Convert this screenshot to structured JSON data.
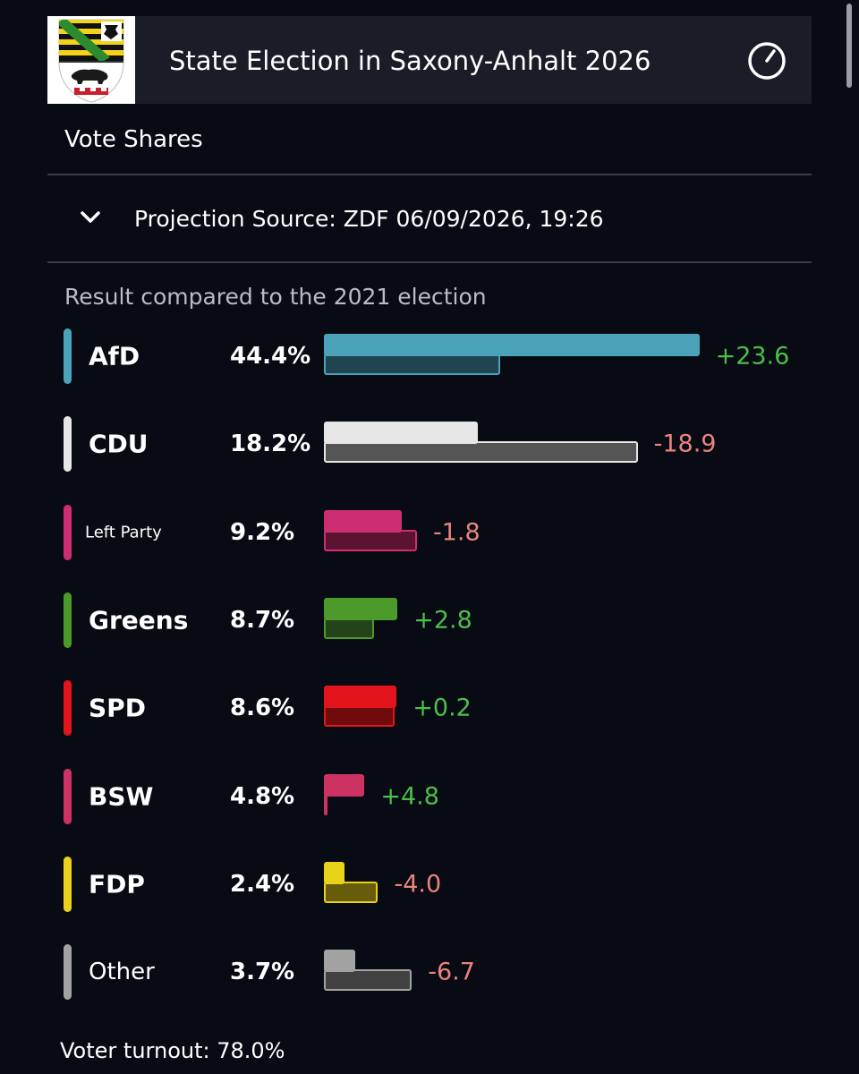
{
  "header": {
    "title": "State Election in Saxony-Anhalt 2026",
    "logo": "saxony-anhalt-coat-of-arms",
    "power_icon": "power-icon"
  },
  "section_title": "Vote Shares",
  "projection": {
    "label": "Projection Source: ZDF 06/09/2026, 19:26",
    "chevron_icon": "chevron-down-icon"
  },
  "chart_data": {
    "type": "bar",
    "title": "Result compared to the 2021 election",
    "categories": [
      "AfD",
      "CDU",
      "Left Party",
      "Greens",
      "SPD",
      "BSW",
      "FDP",
      "Other"
    ],
    "series": [
      {
        "values": [
          44.4,
          18.2,
          9.2,
          8.7,
          8.6,
          4.8,
          2.4,
          3.7
        ]
      },
      {
        "values": [
          20.8,
          37.1,
          11.0,
          5.9,
          8.4,
          0.0,
          6.4,
          10.4
        ]
      }
    ],
    "value_labels": [
      "44.4%",
      "18.2%",
      "9.2%",
      "8.7%",
      "8.6%",
      "4.8%",
      "2.4%",
      "3.7%"
    ],
    "changes": [
      "+23.6",
      "-18.9",
      "-1.8",
      "+2.8",
      "+0.2",
      "+4.8",
      "-4.0",
      "-6.7"
    ],
    "colors": [
      "#4aa3b8",
      "#e6e6e6",
      "#cd2e72",
      "#4b9a2a",
      "#e3141b",
      "#cc3363",
      "#e8d21a",
      "#a2a2a2"
    ],
    "prev_colors": [
      "#1f4650",
      "#555555",
      "#5a1430",
      "#23441a",
      "#700a0d",
      "#5c1730",
      "#675c0c",
      "#424242"
    ],
    "change_colors": {
      "positive": "#4bbf4a",
      "negative": "#e9837e"
    }
  },
  "footer": {
    "turnout": "Voter turnout: 78.0%"
  }
}
